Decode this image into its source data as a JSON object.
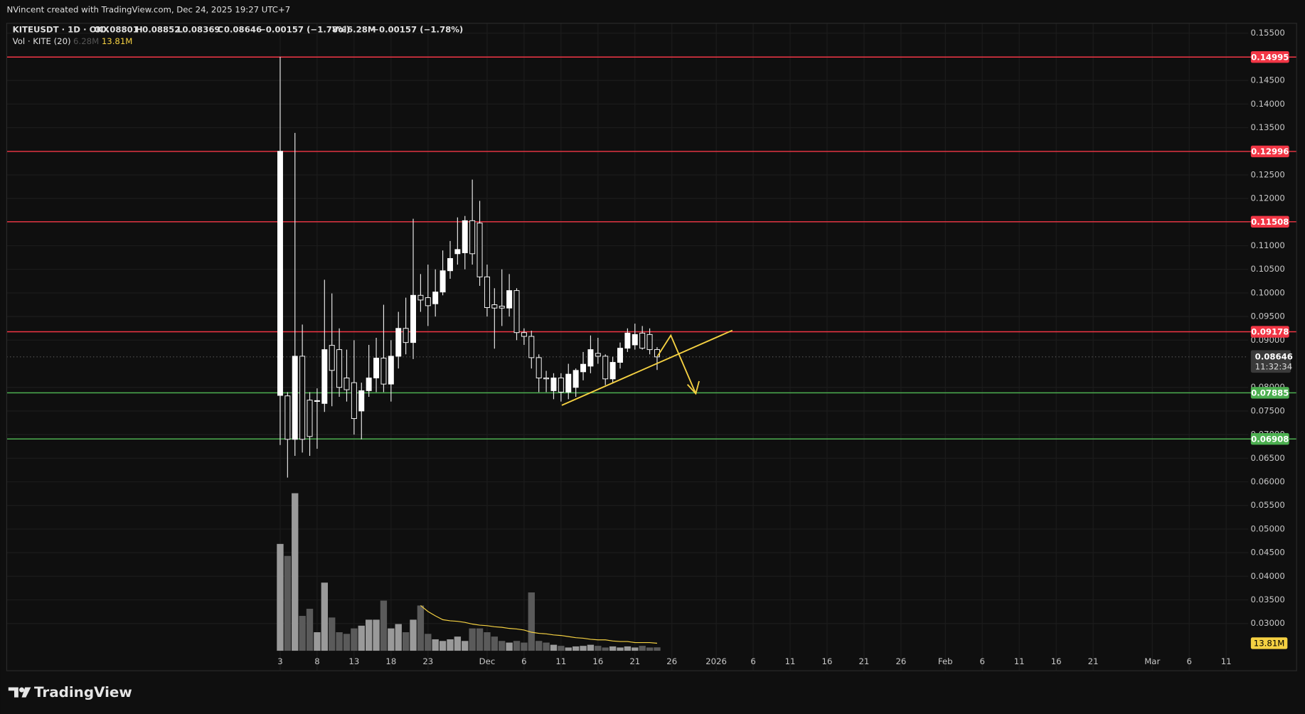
{
  "header": "NVincent created with TradingView.com, Dec 24, 2025 19:27 UTC+7",
  "legend": {
    "symbol": "KITEUSDT · 1D · OKX",
    "o": "O",
    "h": "H",
    "l": "L",
    "c": "C",
    "change": "−0.00157 (−1.78%)",
    "vol": "Vol",
    "vol_value": "6.28M",
    "change2": "−0.00157 (−1.78%)",
    "vol_study": "Vol · KITE (20)",
    "vol_study_value": "6.28M",
    "vol_ma_value": "13.81M"
  },
  "countdown": "11:32:34",
  "footer": "TradingView",
  "chart_data": {
    "type": "candlestick",
    "x": [
      0,
      1,
      2,
      3,
      4,
      5,
      6,
      7,
      8,
      9,
      10,
      11,
      12,
      13,
      14,
      15,
      16,
      17,
      18,
      19,
      20,
      21,
      22,
      23,
      24,
      25,
      26,
      27,
      28,
      29,
      30,
      31,
      32,
      33,
      34,
      35,
      36,
      37,
      38,
      39,
      40,
      41,
      42,
      43,
      44,
      45,
      46,
      47,
      48,
      49,
      50,
      51
    ],
    "open": [
      0.0783,
      0.0782,
      0.069,
      0.0866,
      0.0773,
      0.0771,
      0.0766,
      0.0889,
      0.088,
      0.082,
      0.081,
      0.075,
      0.0793,
      0.082,
      0.0862,
      0.0807,
      0.0866,
      0.0925,
      0.0895,
      0.0995,
      0.099,
      0.0977,
      0.1002,
      0.1047,
      0.1083,
      0.1085,
      0.1153,
      0.1148,
      0.1034,
      0.0975,
      0.0972,
      0.0968,
      0.1005,
      0.0916,
      0.0908,
      0.0863,
      0.082,
      0.0793,
      0.082,
      0.079,
      0.08,
      0.0833,
      0.0845,
      0.0872,
      0.0866,
      0.0818,
      0.0853,
      0.0883,
      0.089,
      0.0915,
      0.0912,
      0.08801
    ],
    "high": [
      0.15,
      0.079,
      0.1339,
      0.0933,
      0.079,
      0.0798,
      0.1028,
      0.0999,
      0.0925,
      0.088,
      0.09,
      0.081,
      0.089,
      0.0905,
      0.0975,
      0.09,
      0.096,
      0.099,
      0.1157,
      0.104,
      0.106,
      0.105,
      0.109,
      0.111,
      0.116,
      0.1163,
      0.124,
      0.1195,
      0.106,
      0.101,
      0.105,
      0.104,
      0.101,
      0.0925,
      0.092,
      0.087,
      0.0835,
      0.083,
      0.083,
      0.085,
      0.084,
      0.0875,
      0.091,
      0.0905,
      0.087,
      0.0865,
      0.0895,
      0.0925,
      0.0935,
      0.093,
      0.0925,
      0.08852
    ],
    "low": [
      0.0678,
      0.0609,
      0.0655,
      0.0662,
      0.0655,
      0.067,
      0.0748,
      0.076,
      0.078,
      0.077,
      0.07,
      0.069,
      0.078,
      0.079,
      0.079,
      0.077,
      0.084,
      0.087,
      0.086,
      0.096,
      0.093,
      0.095,
      0.0995,
      0.103,
      0.106,
      0.105,
      0.106,
      0.1015,
      0.095,
      0.0882,
      0.093,
      0.095,
      0.09,
      0.089,
      0.084,
      0.079,
      0.079,
      0.0775,
      0.077,
      0.0775,
      0.078,
      0.0815,
      0.083,
      0.085,
      0.0805,
      0.081,
      0.084,
      0.0875,
      0.088,
      0.088,
      0.087,
      0.08369
    ],
    "close": [
      0.13,
      0.069,
      0.0866,
      0.069,
      0.0696,
      0.0772,
      0.088,
      0.0836,
      0.08,
      0.0795,
      0.0734,
      0.0793,
      0.082,
      0.0862,
      0.0807,
      0.0866,
      0.0925,
      0.0895,
      0.0995,
      0.0985,
      0.0973,
      0.1002,
      0.1047,
      0.1073,
      0.1092,
      0.1153,
      0.1083,
      0.1034,
      0.0969,
      0.0968,
      0.0968,
      0.1005,
      0.0916,
      0.0908,
      0.0863,
      0.082,
      0.0818,
      0.082,
      0.079,
      0.0828,
      0.0836,
      0.0849,
      0.088,
      0.0866,
      0.0818,
      0.0853,
      0.0883,
      0.0915,
      0.0912,
      0.0883,
      0.088,
      0.08646
    ],
    "volume": [
      196,
      174,
      289,
      64,
      77,
      34,
      125,
      61,
      34,
      31,
      41,
      46,
      57,
      57,
      92,
      41,
      49,
      34,
      57,
      83,
      31,
      21,
      18,
      21,
      26,
      18,
      41,
      41,
      34,
      26,
      18,
      15,
      18,
      15,
      107,
      18,
      15,
      11,
      9,
      6,
      8,
      9,
      11,
      9,
      6,
      8,
      6,
      8,
      6,
      9,
      6,
      6.28
    ],
    "volume_ma": [
      null,
      null,
      null,
      null,
      null,
      null,
      null,
      null,
      null,
      null,
      null,
      null,
      null,
      null,
      null,
      null,
      null,
      null,
      null,
      83,
      72,
      64,
      57,
      55,
      54,
      52,
      49,
      47,
      46,
      44,
      43,
      41,
      40,
      38,
      34,
      32,
      31,
      29,
      28,
      26,
      24,
      23,
      21,
      20,
      20,
      18,
      17,
      17,
      15,
      15,
      15,
      13.81
    ],
    "volume_lim": [
      0,
      400
    ],
    "up_color": "#ffffff",
    "down_color": "#0f0f0f",
    "wick_color": "#e8e8e8",
    "volume_up_color": "#9a9a9a",
    "volume_down_color": "#5a5a5a",
    "volume_ma_color": "#f5d142",
    "xlim": [
      -37,
      131
    ],
    "xticks": [
      {
        "value": 0,
        "label": "3"
      },
      {
        "value": 5,
        "label": "8"
      },
      {
        "value": 10,
        "label": "13"
      },
      {
        "value": 15,
        "label": "18"
      },
      {
        "value": 20,
        "label": "23"
      },
      {
        "value": 28,
        "label": "Dec"
      },
      {
        "value": 33,
        "label": "6"
      },
      {
        "value": 38,
        "label": "11"
      },
      {
        "value": 43,
        "label": "16"
      },
      {
        "value": 48,
        "label": "21"
      },
      {
        "value": 53,
        "label": "26"
      },
      {
        "value": 59,
        "label": "2026"
      },
      {
        "value": 64,
        "label": "6"
      },
      {
        "value": 69,
        "label": "11"
      },
      {
        "value": 74,
        "label": "16"
      },
      {
        "value": 79,
        "label": "21"
      },
      {
        "value": 84,
        "label": "26"
      },
      {
        "value": 90,
        "label": "Feb"
      },
      {
        "value": 95,
        "label": "6"
      },
      {
        "value": 100,
        "label": "11"
      },
      {
        "value": 105,
        "label": "16"
      },
      {
        "value": 110,
        "label": "21"
      },
      {
        "value": 118,
        "label": "Mar"
      },
      {
        "value": 123,
        "label": "6"
      },
      {
        "value": 128,
        "label": "11"
      }
    ],
    "ylim": [
      0.02,
      0.1571
    ],
    "yticks": [
      {
        "value": 0.155,
        "label": "0.15500"
      },
      {
        "value": 0.15,
        "label": "0.15000"
      },
      {
        "value": 0.145,
        "label": "0.14500"
      },
      {
        "value": 0.14,
        "label": "0.14000"
      },
      {
        "value": 0.135,
        "label": "0.13500"
      },
      {
        "value": 0.13,
        "label": "0.13000"
      },
      {
        "value": 0.125,
        "label": "0.12500"
      },
      {
        "value": 0.12,
        "label": "0.12000"
      },
      {
        "value": 0.115,
        "label": "0.11500"
      },
      {
        "value": 0.11,
        "label": "0.11000"
      },
      {
        "value": 0.105,
        "label": "0.10500"
      },
      {
        "value": 0.1,
        "label": "0.10000"
      },
      {
        "value": 0.095,
        "label": "0.09500"
      },
      {
        "value": 0.09,
        "label": "0.09000"
      },
      {
        "value": 0.08,
        "label": "0.08000"
      },
      {
        "value": 0.075,
        "label": "0.07500"
      },
      {
        "value": 0.07,
        "label": "0.07000"
      },
      {
        "value": 0.065,
        "label": "0.06500"
      },
      {
        "value": 0.06,
        "label": "0.06000"
      },
      {
        "value": 0.055,
        "label": "0.05500"
      },
      {
        "value": 0.05,
        "label": "0.05000"
      },
      {
        "value": 0.045,
        "label": "0.04500"
      },
      {
        "value": 0.04,
        "label": "0.04000"
      },
      {
        "value": 0.035,
        "label": "0.03500"
      },
      {
        "value": 0.03,
        "label": "0.03000"
      }
    ],
    "grid": true,
    "levels": [
      {
        "value": 0.14995,
        "color": "#f23645"
      },
      {
        "value": 0.12996,
        "color": "#f23645"
      },
      {
        "value": 0.11508,
        "color": "#f23645"
      },
      {
        "value": 0.09178,
        "color": "#f23645"
      },
      {
        "value": 0.07885,
        "color": "#4caf50"
      },
      {
        "value": 0.06908,
        "color": "#4caf50"
      }
    ]
  }
}
